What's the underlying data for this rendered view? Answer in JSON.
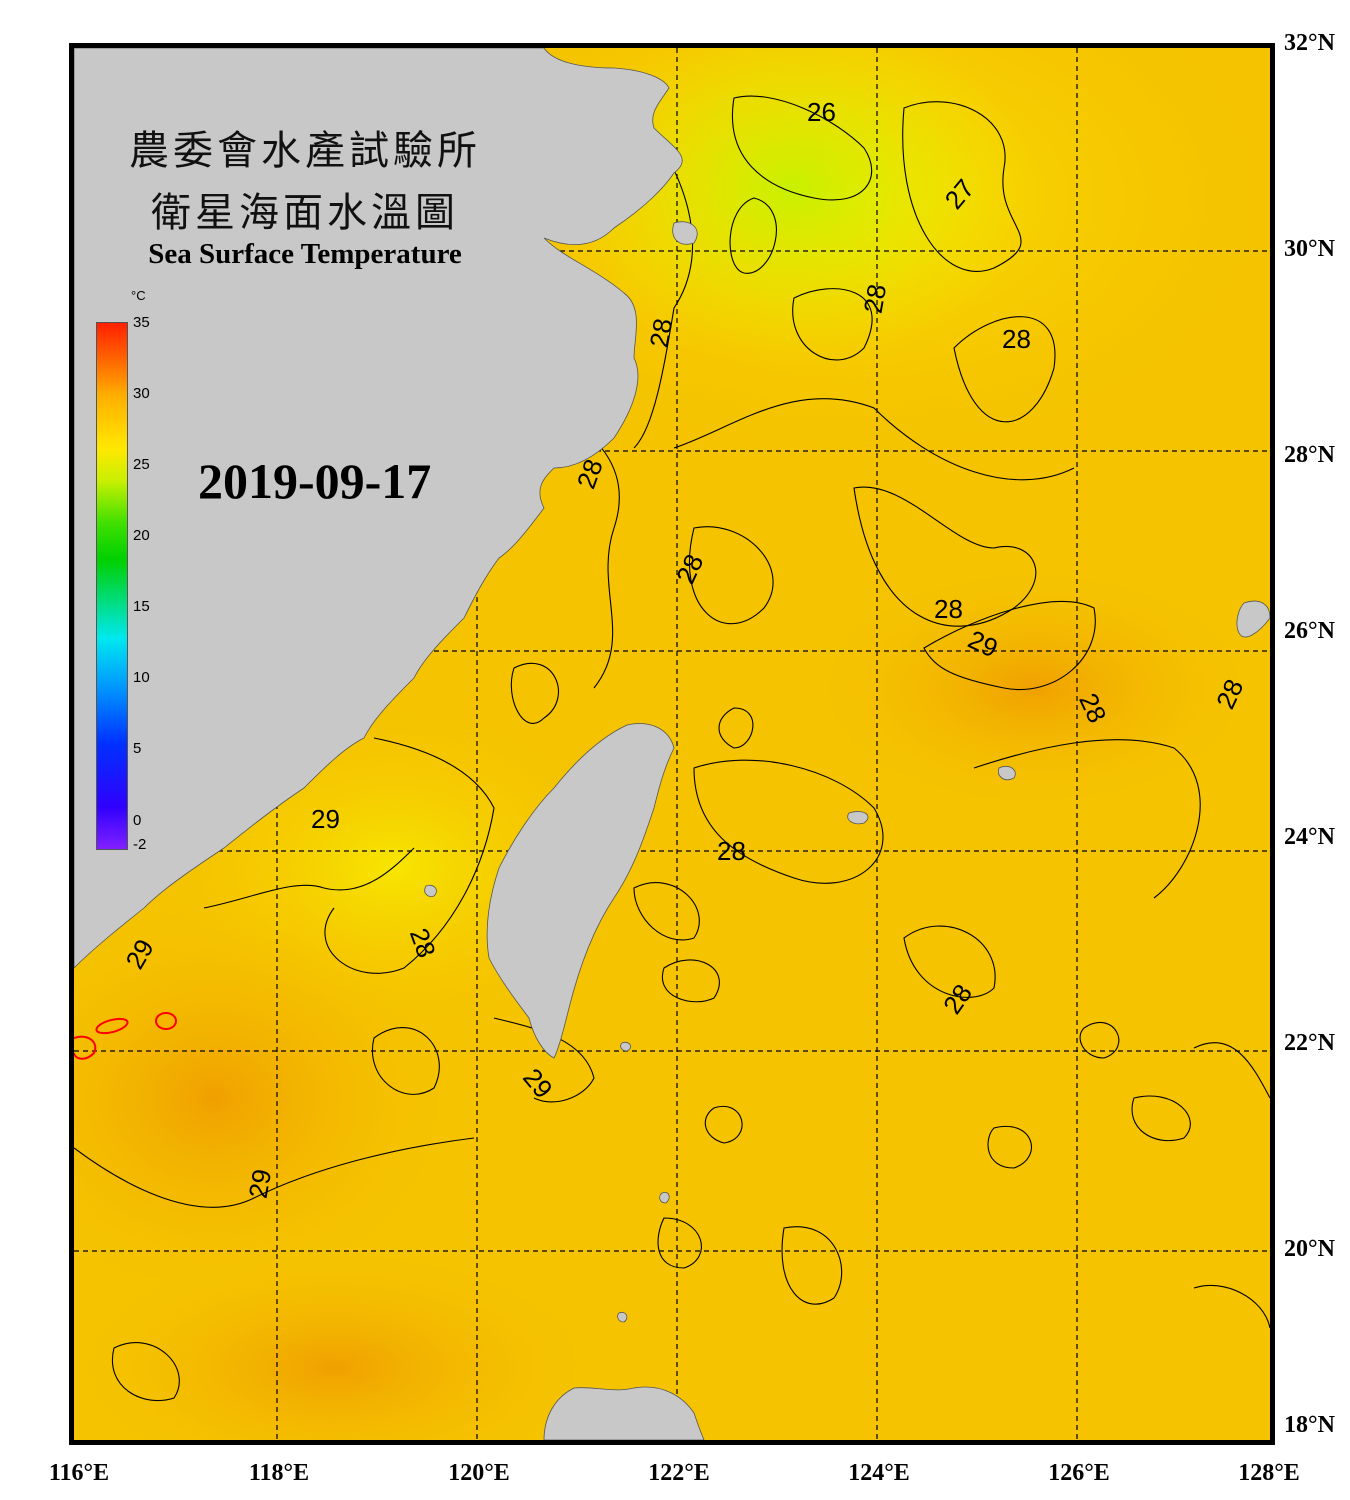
{
  "title": {
    "line1": "農委會水產試驗所",
    "line2": "衛星海面水溫圖",
    "english": "Sea Surface Temperature"
  },
  "date": "2019-09-17",
  "colorbar": {
    "unit": "°C",
    "ticks": [
      "35",
      "30",
      "25",
      "20",
      "15",
      "10",
      "5",
      "0",
      "-2"
    ],
    "min": -2,
    "max": 35
  },
  "latitude_labels": [
    "32°N",
    "30°N",
    "28°N",
    "26°N",
    "24°N",
    "22°N",
    "20°N",
    "18°N"
  ],
  "longitude_labels": [
    "116°E",
    "118°E",
    "120°E",
    "122°E",
    "124°E",
    "126°E",
    "128°E"
  ],
  "contour_labels": [
    "26",
    "27",
    "28",
    "28",
    "28",
    "28",
    "28",
    "28",
    "28",
    "28",
    "28",
    "28",
    "29",
    "29",
    "29",
    "29",
    "29",
    "28"
  ],
  "colors": {
    "land": "#c8c8c8",
    "sea_warm": "#f7c400",
    "sea_cool": "#d8f000",
    "sea_hot": "#f2a800",
    "contour": "#000000",
    "contour_30": "#ff0000"
  }
}
